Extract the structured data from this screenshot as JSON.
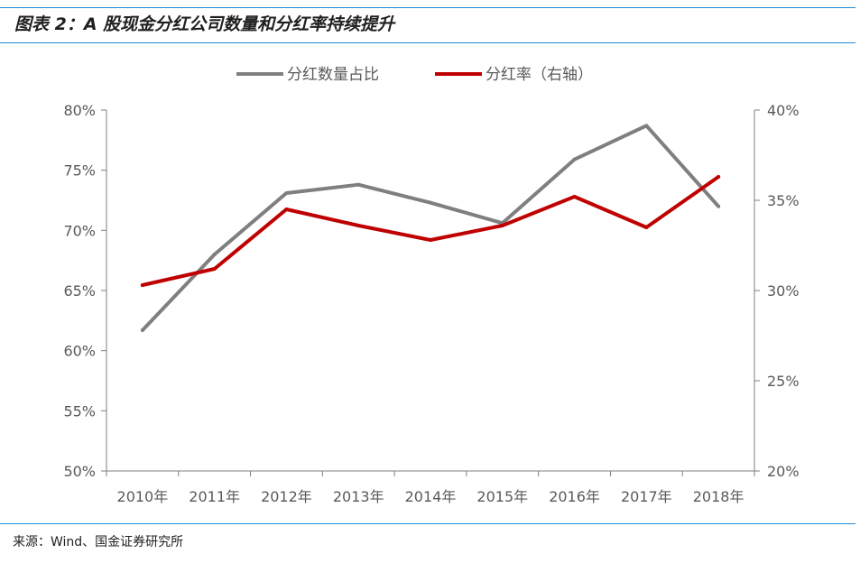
{
  "header": {
    "title": "图表 2：A 股现金分红公司数量和分红率持续提升"
  },
  "footer": {
    "source": "来源：Wind、国金证券研究所"
  },
  "chart_data": {
    "type": "line",
    "categories": [
      "2010年",
      "2011年",
      "2012年",
      "2013年",
      "2014年",
      "2015年",
      "2016年",
      "2017年",
      "2018年"
    ],
    "series": [
      {
        "name": "分红数量占比",
        "axis": "left",
        "color": "#7f7f7f",
        "values": [
          61.7,
          68.0,
          73.1,
          73.8,
          72.3,
          70.6,
          75.9,
          78.7,
          72.0
        ]
      },
      {
        "name": "分红率（右轴）",
        "axis": "right",
        "color": "#c00000",
        "values": [
          30.3,
          31.2,
          34.5,
          33.6,
          32.8,
          33.6,
          35.2,
          33.5,
          36.3
        ]
      }
    ],
    "y_left": {
      "min": 50,
      "max": 80,
      "ticks": [
        "50%",
        "55%",
        "60%",
        "65%",
        "70%",
        "75%",
        "80%"
      ]
    },
    "y_right": {
      "min": 20,
      "max": 40,
      "ticks": [
        "20%",
        "25%",
        "30%",
        "35%",
        "40%"
      ]
    },
    "grid": false,
    "legend_position": "top-center"
  }
}
